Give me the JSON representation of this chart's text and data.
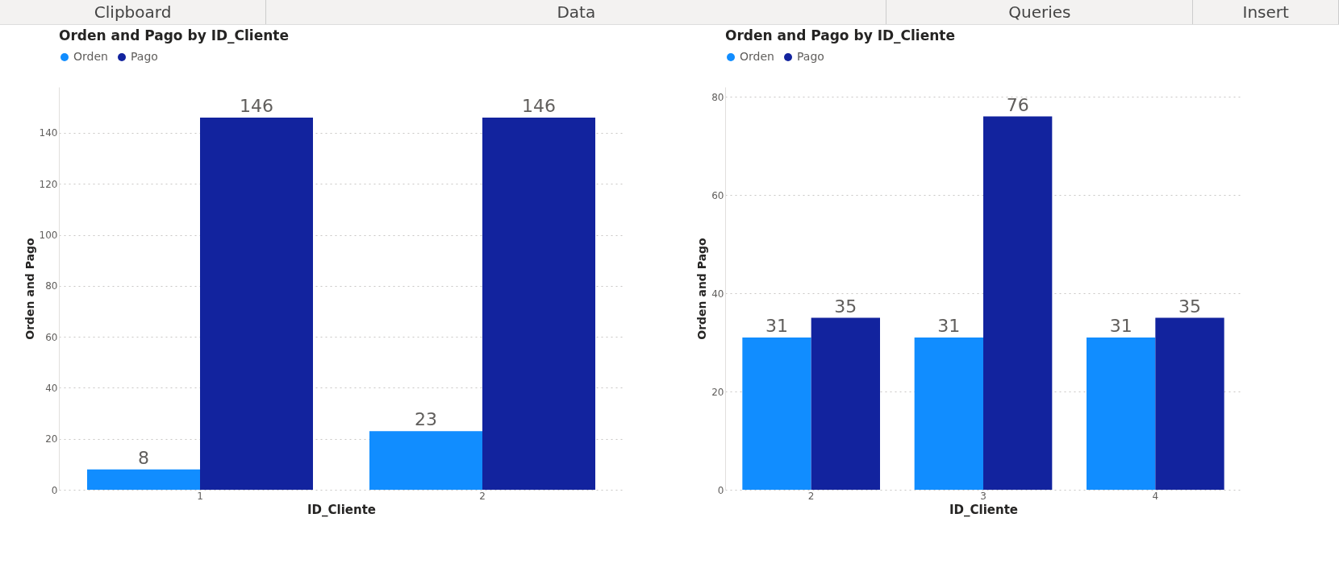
{
  "chart_data": [
    {
      "type": "other",
      "annotations": [
        "Clipboard",
        "Data",
        "Queries",
        "Insert"
      ]
    },
    {
      "type": "bar",
      "title": "Orden and Pago by ID_Cliente",
      "xlabel": "ID_Cliente",
      "ylabel": "Orden and Pago",
      "categories": [
        "1",
        "2"
      ],
      "series": [
        {
          "name": "Orden",
          "color": "#118dff",
          "values": [
            8,
            23
          ]
        },
        {
          "name": "Pago",
          "color": "#12239e",
          "values": [
            146,
            146
          ]
        }
      ],
      "ylim": [
        0,
        158
      ],
      "yticks": [
        0,
        20,
        40,
        60,
        80,
        100,
        120,
        140
      ],
      "grid": "y",
      "legend": "top left",
      "data_labels": true
    },
    {
      "type": "bar",
      "title": "Orden and Pago by ID_Cliente",
      "xlabel": "ID_Cliente",
      "ylabel": "Orden and Pago",
      "categories": [
        "2",
        "3",
        "4"
      ],
      "series": [
        {
          "name": "Orden",
          "color": "#118dff",
          "values": [
            31,
            31,
            31
          ]
        },
        {
          "name": "Pago",
          "color": "#12239e",
          "values": [
            35,
            76,
            35
          ]
        }
      ],
      "ylim": [
        0,
        82
      ],
      "yticks": [
        0,
        20,
        40,
        60,
        80
      ],
      "grid": "y",
      "legend": "top left",
      "data_labels": true
    }
  ]
}
